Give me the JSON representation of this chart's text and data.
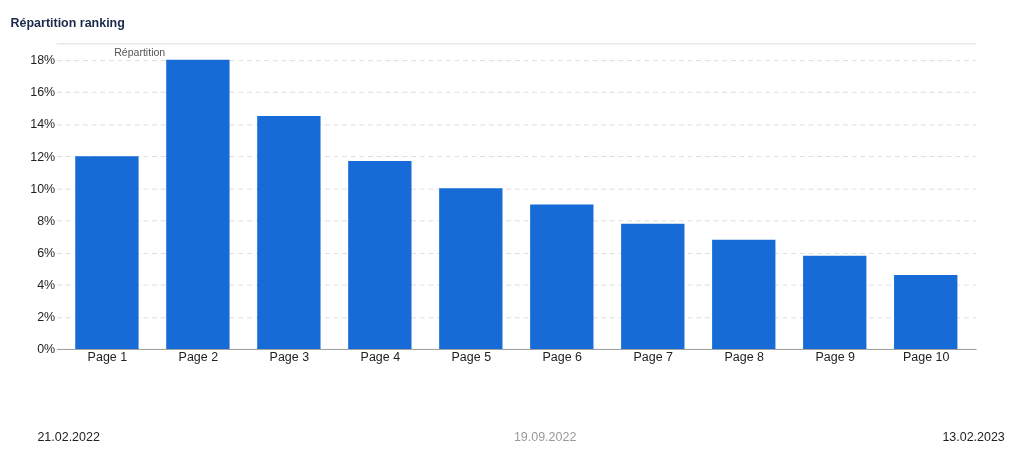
{
  "chart_data": {
    "type": "bar",
    "title": "Répartition ranking",
    "categories": [
      "Page 1",
      "Page 2",
      "Page 3",
      "Page 4",
      "Page 5",
      "Page 6",
      "Page 7",
      "Page 8",
      "Page 9",
      "Page 10"
    ],
    "series": [
      {
        "color": "#166bd6",
        "values": [
          12,
          18,
          14.5,
          11.7,
          10,
          9,
          7.8,
          6.8,
          5.8,
          4.6
        ]
      }
    ],
    "ylim": [
      0,
      19
    ],
    "yticks": [
      {
        "value": 0,
        "label": "0%"
      },
      {
        "value": 2,
        "label": "2%"
      },
      {
        "value": 4,
        "label": "4%"
      },
      {
        "value": 6,
        "label": "6%"
      },
      {
        "value": 8,
        "label": "8%"
      },
      {
        "value": 10,
        "label": "10%"
      },
      {
        "value": 12,
        "label": "12%"
      },
      {
        "value": 14,
        "label": "14%"
      },
      {
        "value": 16,
        "label": "16%"
      },
      {
        "value": 18,
        "label": "18%"
      }
    ],
    "grid": "y",
    "annotations": [
      "Répartition",
      "21.02.2022",
      "19.09.2022",
      "13.02.2023"
    ]
  }
}
